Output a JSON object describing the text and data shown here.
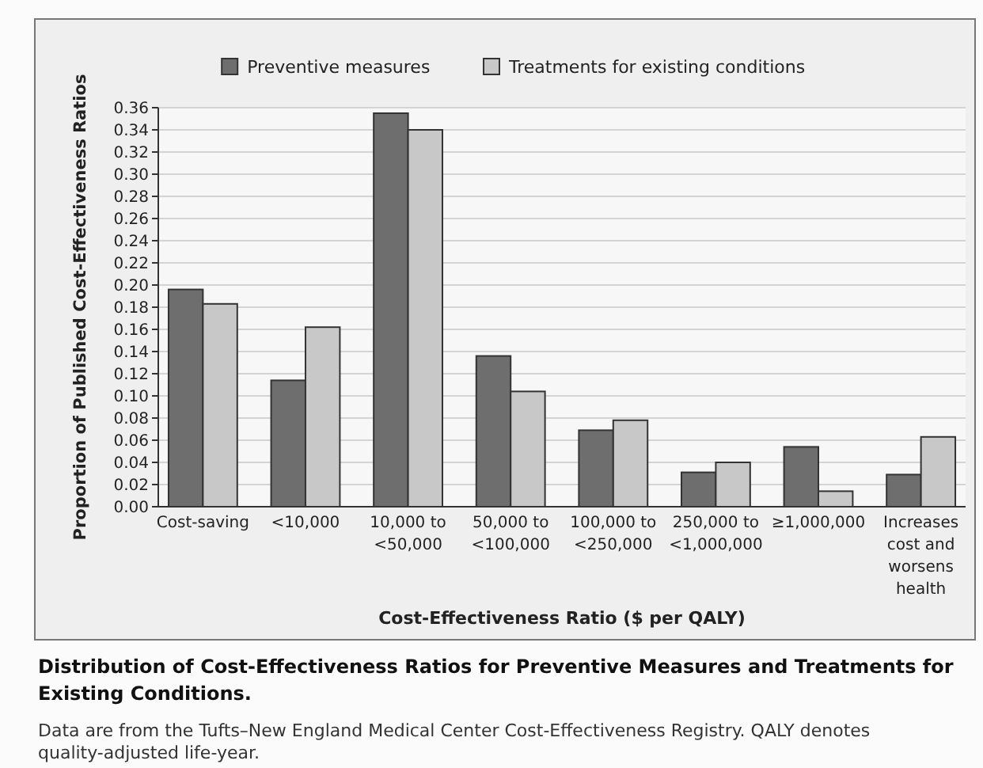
{
  "chart_data": {
    "type": "bar",
    "title": "Distribution of Cost-Effectiveness Ratios for Preventive Measures and Treatments for Existing Conditions.",
    "annotations": [
      "Data are from the Tufts–New England Medical Center Cost-Effectiveness Registry. QALY denotes quality-adjusted life-year."
    ],
    "xlabel": "Cost-Effectiveness Ratio ($ per QALY)",
    "ylabel": "Proportion of Published Cost-Effectiveness Ratios",
    "categories": [
      "Cost-saving",
      "<10,000",
      "10,000 to\n<50,000",
      "50,000 to\n<100,000",
      "100,000 to\n<250,000",
      "250,000 to\n<1,000,000",
      "≥1,000,000",
      "Increases\ncost and\nworsens\nhealth"
    ],
    "series": [
      {
        "name": "Preventive measures",
        "color": "#6e6e6e",
        "values": [
          0.196,
          0.114,
          0.355,
          0.136,
          0.069,
          0.031,
          0.054,
          0.029
        ]
      },
      {
        "name": "Treatments for existing conditions",
        "color": "#c8c8c8",
        "values": [
          0.183,
          0.162,
          0.34,
          0.104,
          0.078,
          0.04,
          0.014,
          0.063
        ]
      }
    ],
    "ylim": [
      0,
      0.36
    ],
    "yticks": [
      {
        "value": 0,
        "label": "0.00"
      },
      {
        "value": 0.02,
        "label": "0.02"
      },
      {
        "value": 0.04,
        "label": "0.04"
      },
      {
        "value": 0.06,
        "label": "0.06"
      },
      {
        "value": 0.08,
        "label": "0.08"
      },
      {
        "value": 0.1,
        "label": "0.10"
      },
      {
        "value": 0.12,
        "label": "0.12"
      },
      {
        "value": 0.14,
        "label": "0.14"
      },
      {
        "value": 0.16,
        "label": "0.16"
      },
      {
        "value": 0.18,
        "label": "0.18"
      },
      {
        "value": 0.2,
        "label": "0.20"
      },
      {
        "value": 0.22,
        "label": "0.22"
      },
      {
        "value": 0.24,
        "label": "0.24"
      },
      {
        "value": 0.26,
        "label": "0.26"
      },
      {
        "value": 0.28,
        "label": "0.28"
      },
      {
        "value": 0.3,
        "label": "0.30"
      },
      {
        "value": 0.32,
        "label": "0.32"
      },
      {
        "value": 0.34,
        "label": "0.34"
      },
      {
        "value": 0.36,
        "label": "0.36"
      }
    ],
    "grid": "y",
    "legend": "top"
  }
}
